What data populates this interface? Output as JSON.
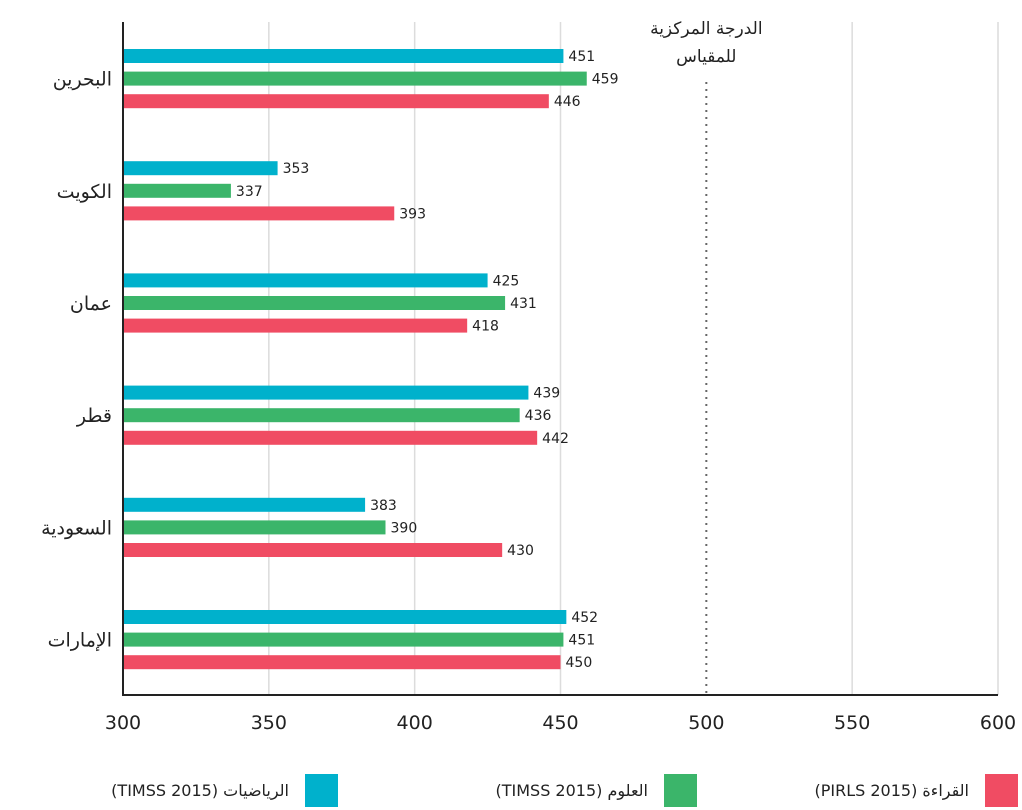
{
  "chart_data": {
    "type": "bar",
    "orientation": "horizontal",
    "categories": [
      "البحرين",
      "الكويت",
      "عمان",
      "قطر",
      "السعودية",
      "الإمارات"
    ],
    "series": [
      {
        "name": "الرياضيات (TIMSS 2015)",
        "color": "#00b1cc",
        "values": [
          451,
          353,
          425,
          439,
          383,
          452
        ]
      },
      {
        "name": "العلوم (TIMSS 2015)",
        "color": "#3bb56a",
        "values": [
          459,
          337,
          431,
          436,
          390,
          451
        ]
      },
      {
        "name": "القراءة (PIRLS 2015)",
        "color": "#f04c63",
        "values": [
          446,
          393,
          418,
          442,
          430,
          450
        ]
      }
    ],
    "xlim": [
      300,
      600
    ],
    "xticks": [
      300,
      350,
      400,
      450,
      500,
      550,
      600
    ],
    "grid": true,
    "reference_line": {
      "value": 500,
      "label_lines": [
        "الدرجة المركزية",
        "للمقياس"
      ]
    },
    "legend_position": "bottom"
  }
}
